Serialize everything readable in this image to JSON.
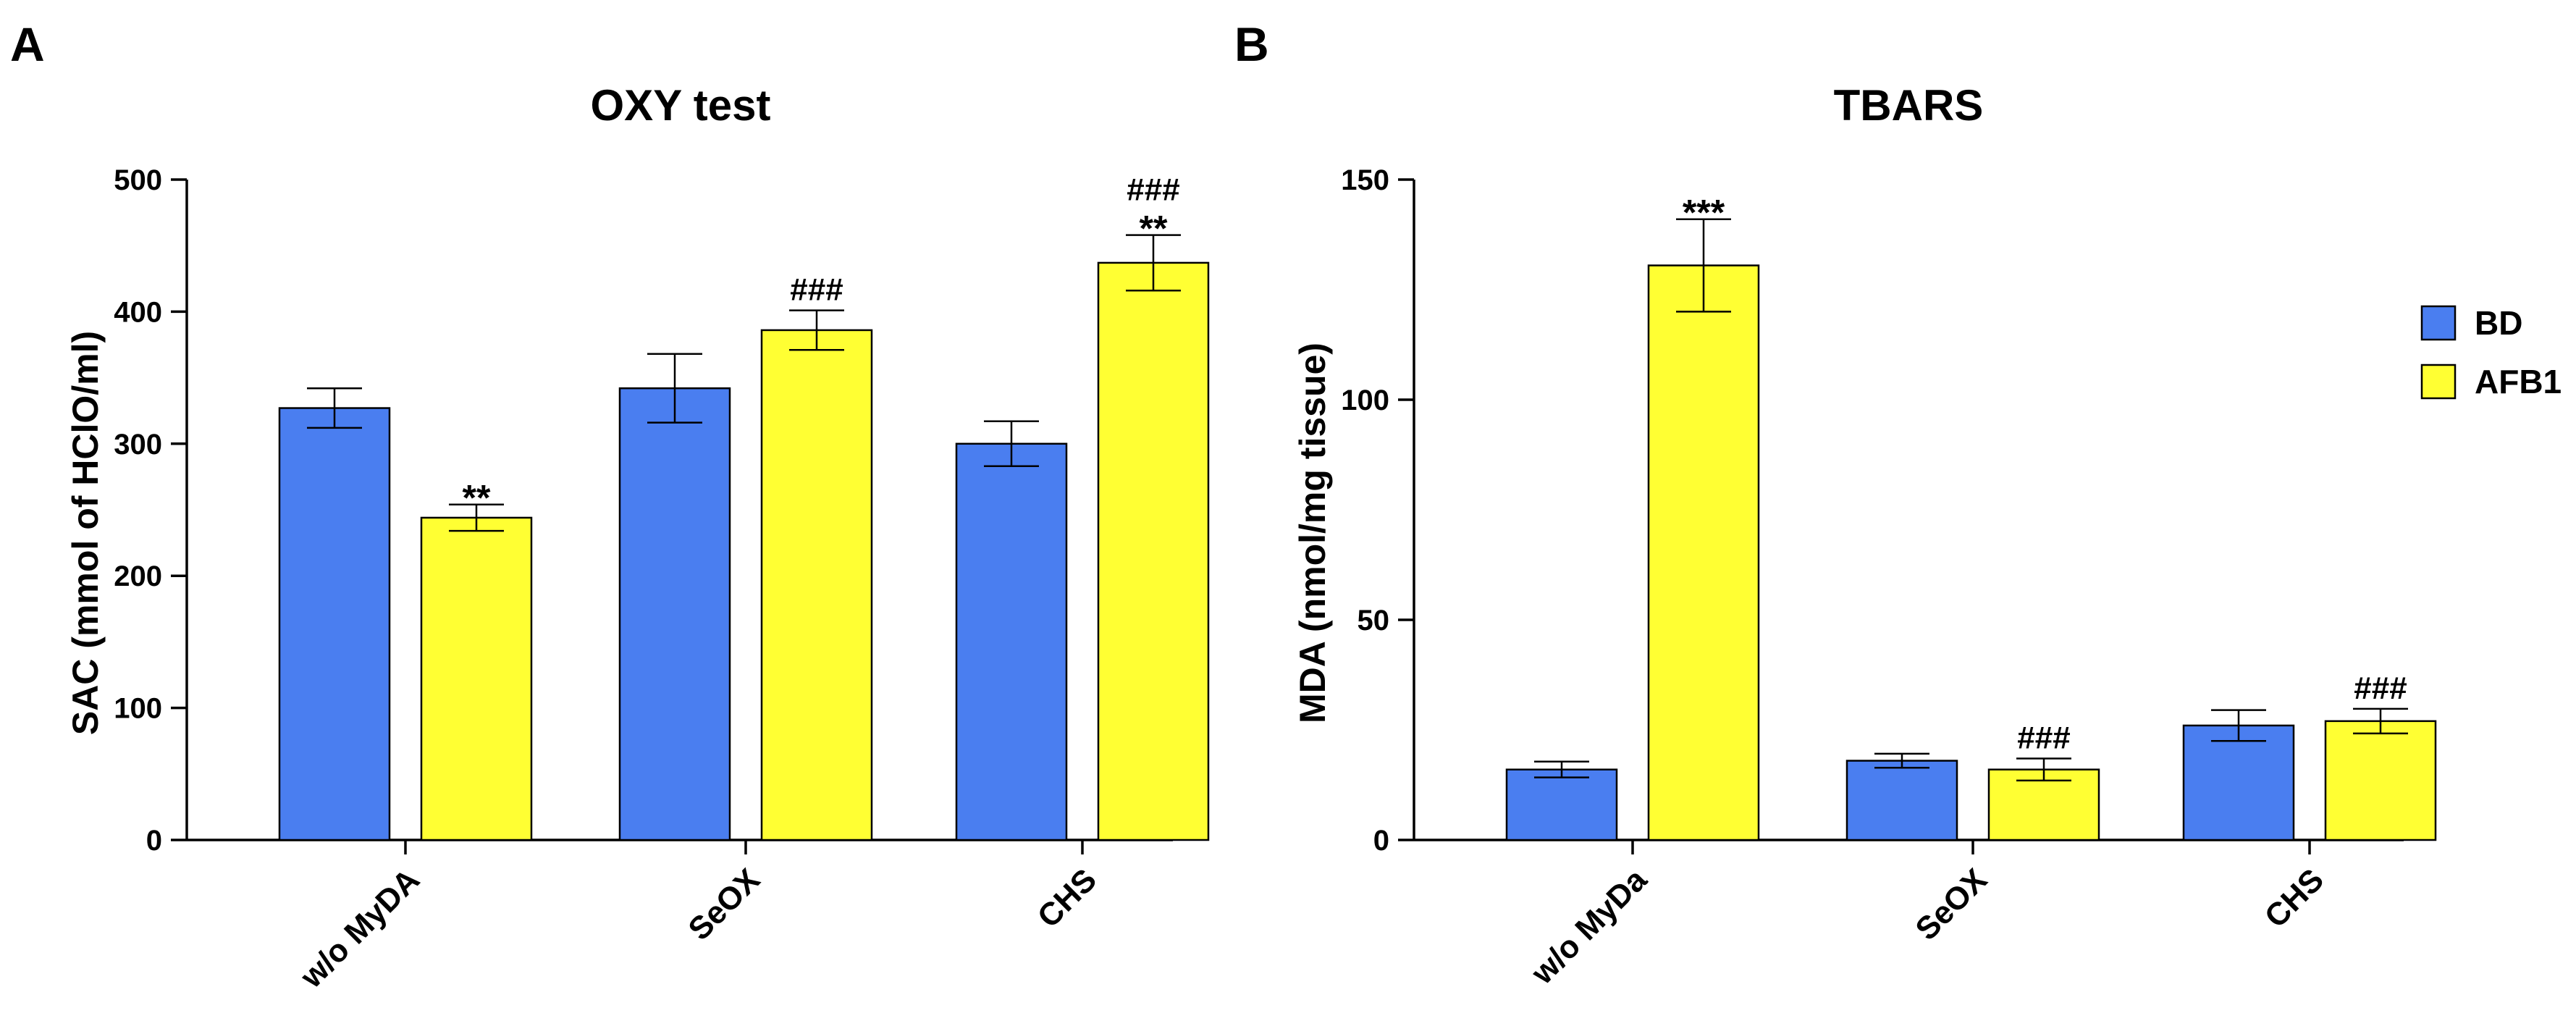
{
  "legend": [
    {
      "label": "BD",
      "color": "#4a7ef0"
    },
    {
      "label": "AFB1",
      "color": "#ffff33"
    }
  ],
  "chart_data": [
    {
      "panel_label": "A",
      "type": "bar",
      "title": "OXY test",
      "xlabel": "",
      "ylabel": "SAC (mmol of HClO/ml)",
      "ylim": [
        0,
        500
      ],
      "yticks": [
        0,
        100,
        200,
        300,
        400,
        500
      ],
      "categories": [
        "w/o MyDA",
        "SeOX",
        "CHS"
      ],
      "series": [
        {
          "name": "BD",
          "color": "#4a7ef0",
          "values": [
            327,
            342,
            300
          ],
          "errors": [
            15,
            26,
            17
          ],
          "annotations": [
            "",
            "",
            ""
          ]
        },
        {
          "name": "AFB1",
          "color": "#ffff33",
          "values": [
            244,
            386,
            437
          ],
          "errors": [
            10,
            15,
            21
          ],
          "annotations": [
            "**",
            "###",
            "###\n**"
          ]
        }
      ]
    },
    {
      "panel_label": "B",
      "type": "bar",
      "title": "TBARS",
      "xlabel": "",
      "ylabel": "MDA (nmol/mg tissue)",
      "ylim": [
        0,
        150
      ],
      "yticks": [
        0,
        50,
        100,
        150
      ],
      "categories": [
        "w/o MyDa",
        "SeOX",
        "CHS"
      ],
      "series": [
        {
          "name": "BD",
          "color": "#4a7ef0",
          "values": [
            16,
            18,
            26
          ],
          "errors": [
            1.8,
            1.6,
            3.5
          ],
          "annotations": [
            "",
            "",
            ""
          ]
        },
        {
          "name": "AFB1",
          "color": "#ffff33",
          "values": [
            130.5,
            16,
            27
          ],
          "errors": [
            10.5,
            2.5,
            2.8
          ],
          "annotations": [
            "***",
            "###",
            "###"
          ]
        }
      ]
    }
  ]
}
